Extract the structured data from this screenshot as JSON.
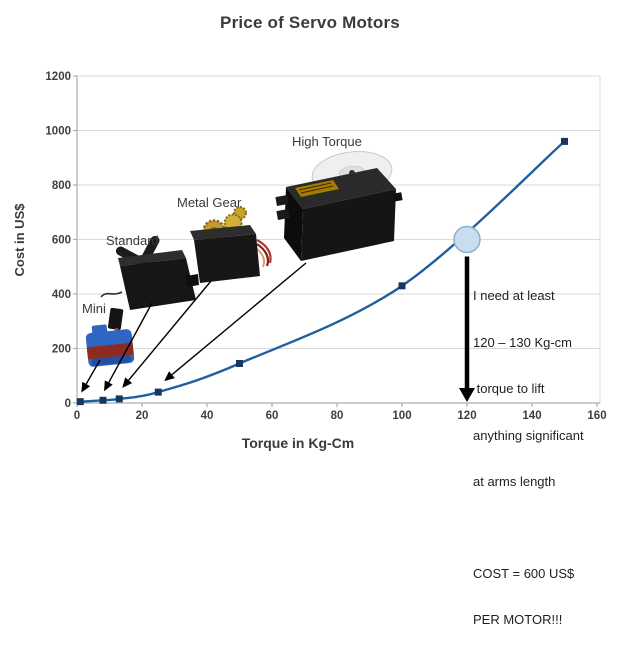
{
  "title": "Price of Servo Motors",
  "chart_data": {
    "type": "line",
    "title": "Price of Servo Motors",
    "xlabel": "Torque in Kg-Cm",
    "ylabel": "Cost in US$",
    "x": [
      1,
      8,
      13,
      25,
      50,
      100,
      150
    ],
    "y": [
      5,
      10,
      15,
      40,
      145,
      430,
      960
    ],
    "xlim": [
      0,
      160
    ],
    "ylim": [
      0,
      1200
    ],
    "x_ticks": [
      0,
      20,
      40,
      60,
      80,
      100,
      120,
      140,
      160
    ],
    "y_ticks": [
      0,
      200,
      400,
      600,
      800,
      1000,
      1200
    ],
    "grid": "horizontal-only",
    "legend": "none",
    "marker_shape": "square",
    "highlight_point": {
      "x": 120,
      "y": 600
    },
    "callouts": [
      {
        "label": "Mini",
        "point_index": 0
      },
      {
        "label": "Standard",
        "point_index": 1
      },
      {
        "label": "Metal Gear",
        "point_index": 2
      },
      {
        "label": "High Torque",
        "point_index": 3
      }
    ]
  },
  "note": {
    "lines": [
      "I need at least",
      "120 – 130 Kg-cm",
      " torque to lift",
      "anything significant",
      "at arms length"
    ],
    "cost_lines": [
      "COST = 600 US$",
      "PER MOTOR!!!"
    ]
  },
  "colors": {
    "line": "#1F5FA0",
    "marker": "#17375E",
    "grid": "#D9D9D9",
    "axis": "#ADADAD",
    "tick_text": "#3F3F3F",
    "note_text": "#1F1F1F",
    "highlight_fill": "#C9DDF0",
    "highlight_stroke": "#8FAFC8",
    "arrow": "#000000"
  }
}
